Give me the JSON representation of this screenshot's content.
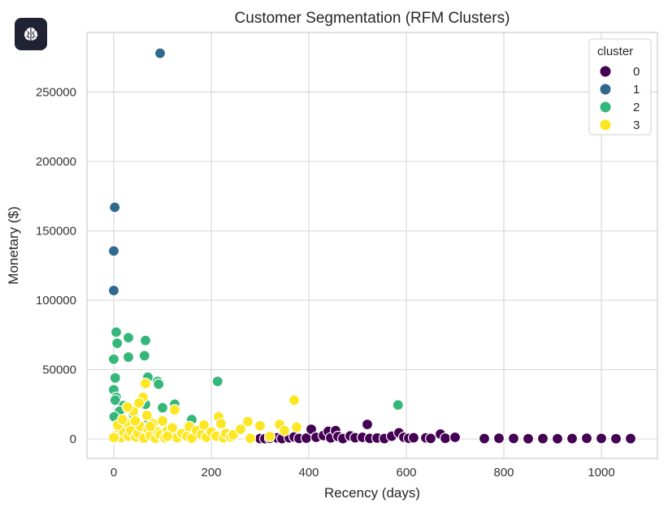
{
  "app_badge": {
    "icon": "brain-icon"
  },
  "chart_data": {
    "type": "scatter",
    "title": "Customer Segmentation (RFM Clusters)",
    "xlabel": "Recency (days)",
    "ylabel": "Monetary ($)",
    "xlim": [
      -55,
      1115
    ],
    "ylim": [
      -14000,
      293000
    ],
    "xticks": [
      0,
      200,
      400,
      600,
      800,
      1000
    ],
    "yticks": [
      0,
      50000,
      100000,
      150000,
      200000,
      250000
    ],
    "grid": true,
    "legend": {
      "title": "cluster",
      "position": "top-right"
    },
    "series": [
      {
        "name": "0",
        "color": "#440154",
        "points": [
          [
            300,
            300
          ],
          [
            310,
            200
          ],
          [
            320,
            500
          ],
          [
            335,
            800
          ],
          [
            345,
            300
          ],
          [
            360,
            900
          ],
          [
            370,
            1500
          ],
          [
            380,
            400
          ],
          [
            395,
            600
          ],
          [
            405,
            7000
          ],
          [
            415,
            1200
          ],
          [
            430,
            2500
          ],
          [
            440,
            5500
          ],
          [
            445,
            800
          ],
          [
            455,
            6000
          ],
          [
            460,
            1800
          ],
          [
            470,
            300
          ],
          [
            485,
            2200
          ],
          [
            495,
            900
          ],
          [
            510,
            1200
          ],
          [
            520,
            10500
          ],
          [
            525,
            400
          ],
          [
            540,
            700
          ],
          [
            555,
            300
          ],
          [
            570,
            2000
          ],
          [
            585,
            4500
          ],
          [
            595,
            1200
          ],
          [
            605,
            500
          ],
          [
            615,
            900
          ],
          [
            640,
            800
          ],
          [
            650,
            400
          ],
          [
            670,
            3500
          ],
          [
            680,
            500
          ],
          [
            700,
            1200
          ],
          [
            760,
            300
          ],
          [
            790,
            500
          ],
          [
            820,
            400
          ],
          [
            850,
            200
          ],
          [
            880,
            300
          ],
          [
            910,
            200
          ],
          [
            940,
            300
          ],
          [
            970,
            500
          ],
          [
            1000,
            400
          ],
          [
            1030,
            200
          ],
          [
            1060,
            300
          ]
        ]
      },
      {
        "name": "1",
        "color": "#31688e",
        "points": [
          [
            95,
            278000
          ],
          [
            2,
            167000
          ],
          [
            0,
            135500
          ],
          [
            0,
            107000
          ]
        ]
      },
      {
        "name": "2",
        "color": "#35b779",
        "points": [
          [
            5,
            77000
          ],
          [
            30,
            73000
          ],
          [
            65,
            71000
          ],
          [
            7,
            69000
          ],
          [
            30,
            59000
          ],
          [
            63,
            60000
          ],
          [
            0,
            57500
          ],
          [
            3,
            44000
          ],
          [
            70,
            44500
          ],
          [
            90,
            41500
          ],
          [
            213,
            41500
          ],
          [
            92,
            39500
          ],
          [
            0,
            35500
          ],
          [
            5,
            30000
          ],
          [
            3,
            28000
          ],
          [
            65,
            25000
          ],
          [
            20,
            24000
          ],
          [
            100,
            22500
          ],
          [
            125,
            25000
          ],
          [
            583,
            24500
          ],
          [
            12,
            20000
          ],
          [
            30,
            22000
          ],
          [
            1,
            16000
          ],
          [
            160,
            14000
          ],
          [
            70,
            15000
          ],
          [
            40,
            18000
          ]
        ]
      },
      {
        "name": "3",
        "color": "#fde725",
        "points": [
          [
            0,
            500
          ],
          [
            5,
            3000
          ],
          [
            10,
            8000
          ],
          [
            15,
            1000
          ],
          [
            20,
            5000
          ],
          [
            25,
            12000
          ],
          [
            30,
            2000
          ],
          [
            35,
            6000
          ],
          [
            40,
            20000
          ],
          [
            45,
            1500
          ],
          [
            50,
            4000
          ],
          [
            55,
            9000
          ],
          [
            60,
            30000
          ],
          [
            62,
            600
          ],
          [
            65,
            40000
          ],
          [
            68,
            17000
          ],
          [
            70,
            7000
          ],
          [
            75,
            2500
          ],
          [
            80,
            11000
          ],
          [
            85,
            500
          ],
          [
            90,
            5000
          ],
          [
            95,
            3000
          ],
          [
            100,
            13000
          ],
          [
            105,
            800
          ],
          [
            110,
            6000
          ],
          [
            115,
            2000
          ],
          [
            120,
            8000
          ],
          [
            125,
            21000
          ],
          [
            130,
            1000
          ],
          [
            140,
            4000
          ],
          [
            150,
            2000
          ],
          [
            155,
            9000
          ],
          [
            160,
            600
          ],
          [
            170,
            6000
          ],
          [
            180,
            3000
          ],
          [
            185,
            10000
          ],
          [
            190,
            1200
          ],
          [
            200,
            5000
          ],
          [
            210,
            2000
          ],
          [
            215,
            16000
          ],
          [
            220,
            11000
          ],
          [
            225,
            800
          ],
          [
            230,
            4000
          ],
          [
            240,
            1500
          ],
          [
            245,
            3000
          ],
          [
            260,
            7000
          ],
          [
            275,
            12500
          ],
          [
            280,
            500
          ],
          [
            300,
            9500
          ],
          [
            320,
            1800
          ],
          [
            340,
            10500
          ],
          [
            350,
            6000
          ],
          [
            370,
            28000
          ],
          [
            375,
            8500
          ],
          [
            0,
            1000
          ],
          [
            8,
            10000
          ],
          [
            18,
            14000
          ],
          [
            28,
            23000
          ],
          [
            44,
            13000
          ],
          [
            52,
            26000
          ],
          [
            75,
            9000
          ],
          [
            110,
            2000
          ]
        ]
      }
    ]
  }
}
